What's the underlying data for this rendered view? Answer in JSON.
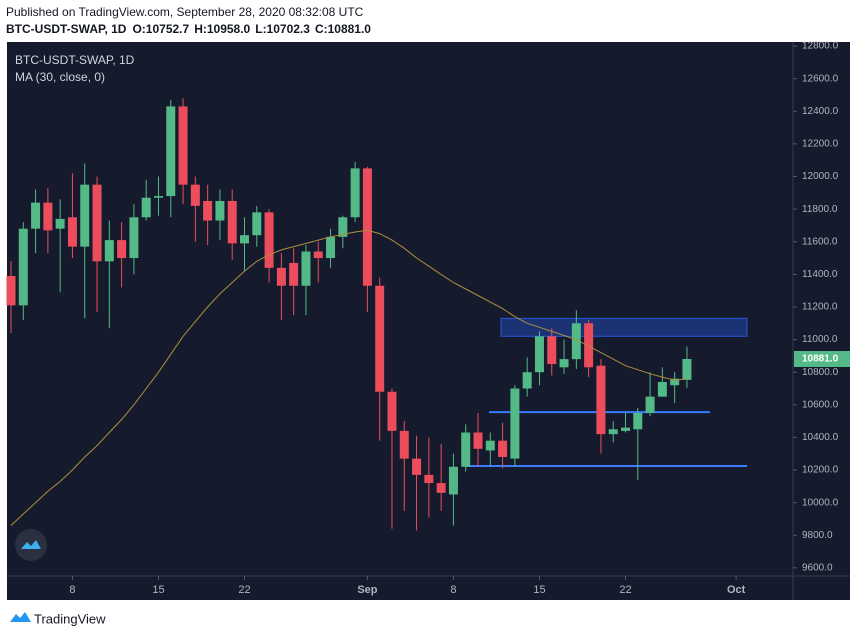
{
  "header": {
    "published": "Published on TradingView.com, September 28, 2020 08:32:08 UTC",
    "symbol": "BTC-USDT-SWAP, 1D",
    "ohlc": [
      "O:10752.7",
      "H:10958.0",
      "L:10702.3",
      "C:10881.0"
    ]
  },
  "footer": {
    "brand": "TradingView"
  },
  "chart_data": {
    "type": "candlestick",
    "title": "BTC-USDT-SWAP, 1D",
    "categories": [
      null,
      null,
      null,
      null,
      null,
      "8",
      null,
      null,
      null,
      null,
      null,
      null,
      "15",
      null,
      null,
      null,
      null,
      null,
      null,
      "22",
      null,
      null,
      null,
      null,
      null,
      null,
      null,
      null,
      null,
      "Sep",
      null,
      null,
      null,
      null,
      null,
      null,
      "8",
      null,
      null,
      null,
      null,
      null,
      null,
      "15",
      null,
      null,
      null,
      null,
      null,
      null,
      "22",
      null,
      null,
      null,
      null,
      null,
      null,
      null,
      null,
      "Oct"
    ],
    "open": [
      11390,
      11210,
      11680,
      11840,
      11680,
      11750,
      11570,
      11950,
      11480,
      11610,
      11500,
      11750,
      11870,
      11880,
      12430,
      11950,
      11850,
      11730,
      11850,
      11590,
      11640,
      11780,
      11440,
      11470,
      11330,
      11540,
      11500,
      11630,
      11750,
      12050,
      11330,
      10680,
      10440,
      10270,
      10170,
      10120,
      10050,
      10220,
      10430,
      10320,
      10380,
      10270,
      10700,
      10800,
      11020,
      10830,
      10880,
      11100,
      10840,
      10420,
      10440,
      10450,
      10550,
      10650,
      10720,
      10752.7,
      null,
      null,
      null,
      null
    ],
    "high": [
      11480,
      11720,
      11920,
      11930,
      11860,
      12020,
      12080,
      12000,
      11730,
      11720,
      11830,
      11980,
      12000,
      12470,
      12480,
      12000,
      11950,
      11920,
      11920,
      11750,
      11820,
      11800,
      11530,
      11560,
      11580,
      11600,
      11680,
      11760,
      12090,
      12060,
      11380,
      10700,
      10500,
      10410,
      10400,
      10360,
      10300,
      10480,
      10550,
      10430,
      10490,
      10720,
      10890,
      11050,
      11070,
      11000,
      11180,
      11120,
      10880,
      10500,
      10550,
      10580,
      10800,
      10830,
      10800,
      10958.0,
      null,
      null,
      null,
      null
    ],
    "low": [
      11040,
      11120,
      11530,
      11530,
      11290,
      11500,
      11130,
      11170,
      11070,
      11320,
      11400,
      11730,
      11760,
      11750,
      11830,
      11600,
      11580,
      11610,
      11490,
      11420,
      11570,
      11350,
      11120,
      11150,
      11150,
      11350,
      11440,
      11560,
      11720,
      11170,
      10380,
      9840,
      9950,
      9830,
      9910,
      9950,
      9860,
      10190,
      10220,
      10220,
      10210,
      10220,
      10650,
      10720,
      10780,
      10790,
      10820,
      10770,
      10300,
      10370,
      10430,
      10140,
      10530,
      10650,
      10610,
      10702.3,
      null,
      null,
      null,
      null
    ],
    "close": [
      11210,
      11680,
      11840,
      11670,
      11740,
      11570,
      11950,
      11480,
      11610,
      11500,
      11750,
      11870,
      11880,
      12430,
      11950,
      11820,
      11730,
      11850,
      11590,
      11640,
      11780,
      11440,
      11330,
      11330,
      11540,
      11500,
      11630,
      11750,
      12050,
      11330,
      10680,
      10440,
      10270,
      10170,
      10120,
      10060,
      10220,
      10430,
      10330,
      10380,
      10280,
      10700,
      10800,
      11020,
      10850,
      10880,
      11100,
      10830,
      10420,
      10450,
      10460,
      10550,
      10650,
      10740,
      10760,
      10881.0,
      null,
      null,
      null,
      null
    ],
    "up_color": "#53b987",
    "down_color": "#eb4d5c",
    "series": [
      {
        "name": "MA (30, close, 0)",
        "color": "#b08d3f",
        "values": [
          9860,
          9930,
          10000,
          10070,
          10130,
          10200,
          10280,
          10350,
          10430,
          10510,
          10600,
          10700,
          10800,
          10910,
          11020,
          11110,
          11200,
          11280,
          11350,
          11420,
          11480,
          11520,
          11550,
          11570,
          11590,
          11610,
          11630,
          11645,
          11660,
          11670,
          11650,
          11610,
          11560,
          11500,
          11450,
          11400,
          11350,
          11310,
          11270,
          11230,
          11190,
          11140,
          11100,
          11075,
          11050,
          11025,
          11000,
          10960,
          10920,
          10880,
          10840,
          10815,
          10790,
          10770,
          10750,
          10760,
          null,
          null,
          null,
          null
        ]
      }
    ],
    "zones": [
      {
        "low": 11020,
        "high": 11130,
        "color": "#2962ff"
      }
    ],
    "levels": [
      {
        "value": 10555,
        "color": "#3a7bff"
      },
      {
        "value": 10225,
        "color": "#3a7bff"
      }
    ],
    "last_price": {
      "value": 10881.0,
      "label": "10881.0"
    },
    "ylim": [
      9550,
      12825
    ],
    "yticks": [
      {
        "value": 9600,
        "label": "9600.0"
      },
      {
        "value": 9800,
        "label": "9800.0"
      },
      {
        "value": 10000,
        "label": "10000.0"
      },
      {
        "value": 10200,
        "label": "10200.0"
      },
      {
        "value": 10400,
        "label": "10400.0"
      },
      {
        "value": 10600,
        "label": "10600.0"
      },
      {
        "value": 10800,
        "label": "10800.0"
      },
      {
        "value": 11000,
        "label": "11000.0"
      },
      {
        "value": 11200,
        "label": "11200.0"
      },
      {
        "value": 11400,
        "label": "11400.0"
      },
      {
        "value": 11600,
        "label": "11600.0"
      },
      {
        "value": 11800,
        "label": "11800.0"
      },
      {
        "value": 12000,
        "label": "12000.0"
      },
      {
        "value": 12200,
        "label": "12200.0"
      },
      {
        "value": 12400,
        "label": "12400.0"
      },
      {
        "value": 12600,
        "label": "12600.0"
      },
      {
        "value": 12800,
        "label": "12800.0"
      }
    ],
    "grid": false
  }
}
